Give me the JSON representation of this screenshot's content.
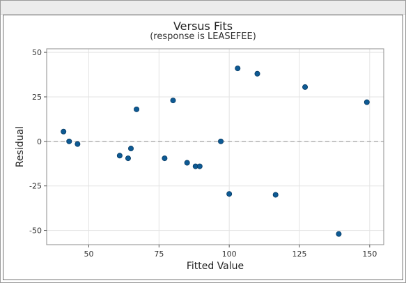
{
  "chart_data": {
    "type": "scatter",
    "title": "Versus Fits",
    "subtitle": "(response is LEASEFEE)",
    "xlabel": "Fitted Value",
    "ylabel": "Residual",
    "xlim": [
      35,
      155
    ],
    "ylim": [
      -58,
      52
    ],
    "xticks": [
      50,
      75,
      100,
      125,
      150
    ],
    "yticks": [
      50,
      25,
      0,
      -25,
      -50
    ],
    "grid": true,
    "reference_line": 0,
    "marker_color": "#0d5a94",
    "x": [
      41,
      43,
      46,
      61,
      64,
      65,
      67,
      77,
      80,
      85,
      88,
      89.5,
      97,
      100,
      103,
      110,
      116.5,
      127,
      139,
      149
    ],
    "y": [
      5.5,
      0,
      -1.5,
      -8,
      -9.5,
      -4,
      18,
      -9.5,
      23,
      -12,
      -14,
      -14,
      0,
      -29.5,
      41,
      38,
      -30,
      30.5,
      -52,
      22
    ]
  }
}
